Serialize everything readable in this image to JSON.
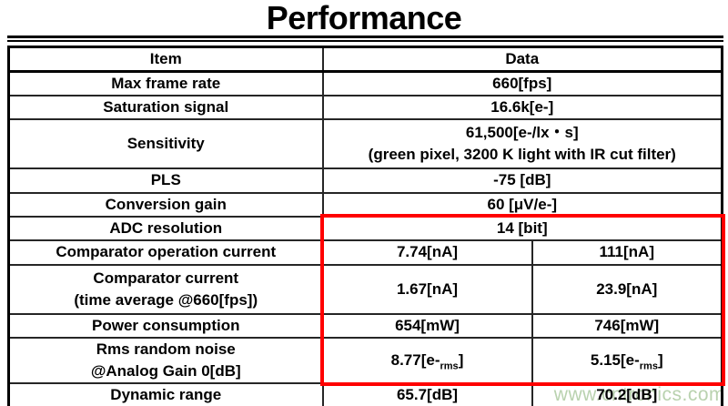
{
  "title": "Performance",
  "watermark": "www.cntronics.com",
  "colors": {
    "highlight_box": "#ff0000",
    "watermark_text": "#b9d2af",
    "border": "#000000"
  },
  "table": {
    "header": {
      "item": "Item",
      "data": "Data"
    },
    "rows": [
      {
        "item": "Max frame rate",
        "data": "660[fps]"
      },
      {
        "item": "Saturation signal",
        "data": "16.6k[e-]"
      },
      {
        "item": "Sensitivity",
        "data": "61,500[e-/lx・s]\n(green pixel, 3200 K light with IR cut filter)"
      },
      {
        "item": "PLS",
        "data": "-75 [dB]"
      },
      {
        "item": "Conversion gain",
        "data": "60 [μV/e-]"
      },
      {
        "item": "ADC resolution",
        "data": "14 [bit]"
      },
      {
        "item": "Comparator operation current",
        "data1": "7.74[nA]",
        "data2": "111[nA]"
      },
      {
        "item": "Comparator current\n(time average @660[fps])",
        "data1": "1.67[nA]",
        "data2": "23.9[nA]"
      },
      {
        "item": "Power consumption",
        "data1": "654[mW]",
        "data2": "746[mW]"
      },
      {
        "item": "Rms random noise\n@Analog Gain 0[dB]",
        "data1": {
          "pre": "8.77[e-",
          "sub": "rms",
          "post": "]"
        },
        "data2": {
          "pre": "5.15[e-",
          "sub": "rms",
          "post": "]"
        }
      },
      {
        "item": "Dynamic range",
        "data1": "65.7[dB]",
        "data2": "70.2[dB]"
      }
    ]
  }
}
